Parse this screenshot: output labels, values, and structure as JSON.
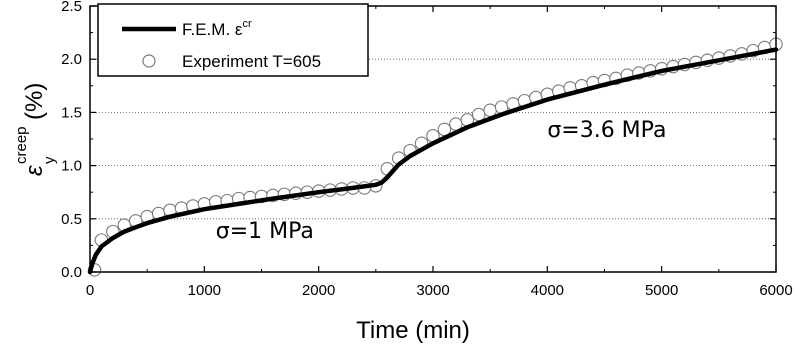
{
  "chart_data": {
    "type": "scatter",
    "xlabel": "Time (min)",
    "ylabel_main": "ε",
    "ylabel_sub": "y",
    "ylabel_sup": "creep",
    "ylabel_unit": "(%)",
    "xlim": [
      0,
      6000
    ],
    "ylim": [
      0,
      2.5
    ],
    "x_ticks": [
      "0",
      "1000",
      "2000",
      "3000",
      "4000",
      "5000",
      "6000"
    ],
    "y_ticks": [
      "0.0",
      "0.5",
      "1.0",
      "1.5",
      "2.0",
      "2.5"
    ],
    "grid": "horizontal dotted",
    "legend_position": "top-left",
    "annotations": [
      {
        "text": "σ=1 MPa",
        "x": 1100,
        "y": 0.32
      },
      {
        "text": "σ=3.6 MPa",
        "x": 4000,
        "y": 1.27
      }
    ],
    "series": [
      {
        "name": "F.E.M. ε",
        "name_sup": "cr",
        "kind": "line",
        "color": "#000000",
        "x": [
          0,
          20,
          50,
          100,
          200,
          300,
          400,
          500,
          700,
          1000,
          1300,
          1600,
          2000,
          2300,
          2500,
          2550,
          2600,
          2700,
          2800,
          3000,
          3300,
          3600,
          4000,
          4500,
          5000,
          5500,
          6000
        ],
        "y": [
          0,
          0.08,
          0.16,
          0.24,
          0.32,
          0.38,
          0.42,
          0.46,
          0.52,
          0.59,
          0.64,
          0.69,
          0.75,
          0.79,
          0.82,
          0.84,
          0.89,
          1.01,
          1.09,
          1.21,
          1.36,
          1.48,
          1.62,
          1.76,
          1.89,
          1.99,
          2.09
        ]
      },
      {
        "name": "Experiment T=605",
        "kind": "marker",
        "color": "#000000",
        "x": [
          40,
          100,
          200,
          300,
          400,
          500,
          600,
          700,
          800,
          900,
          1000,
          1100,
          1200,
          1300,
          1400,
          1500,
          1600,
          1700,
          1800,
          1900,
          2000,
          2100,
          2200,
          2300,
          2400,
          2500,
          2600,
          2700,
          2800,
          2900,
          3000,
          3100,
          3200,
          3300,
          3400,
          3500,
          3600,
          3700,
          3800,
          3900,
          4000,
          4100,
          4200,
          4300,
          4400,
          4500,
          4600,
          4700,
          4800,
          4900,
          5000,
          5100,
          5200,
          5300,
          5400,
          5500,
          5600,
          5700,
          5800,
          5900,
          6000
        ],
        "y": [
          0.02,
          0.3,
          0.38,
          0.44,
          0.48,
          0.52,
          0.55,
          0.58,
          0.6,
          0.62,
          0.64,
          0.66,
          0.67,
          0.69,
          0.7,
          0.71,
          0.72,
          0.73,
          0.74,
          0.75,
          0.76,
          0.77,
          0.78,
          0.79,
          0.79,
          0.81,
          0.97,
          1.07,
          1.14,
          1.21,
          1.28,
          1.34,
          1.39,
          1.43,
          1.48,
          1.52,
          1.55,
          1.58,
          1.61,
          1.64,
          1.67,
          1.7,
          1.73,
          1.75,
          1.78,
          1.8,
          1.82,
          1.85,
          1.87,
          1.89,
          1.91,
          1.93,
          1.95,
          1.97,
          1.99,
          2.01,
          2.03,
          2.05,
          2.08,
          2.11,
          2.14
        ]
      }
    ]
  }
}
